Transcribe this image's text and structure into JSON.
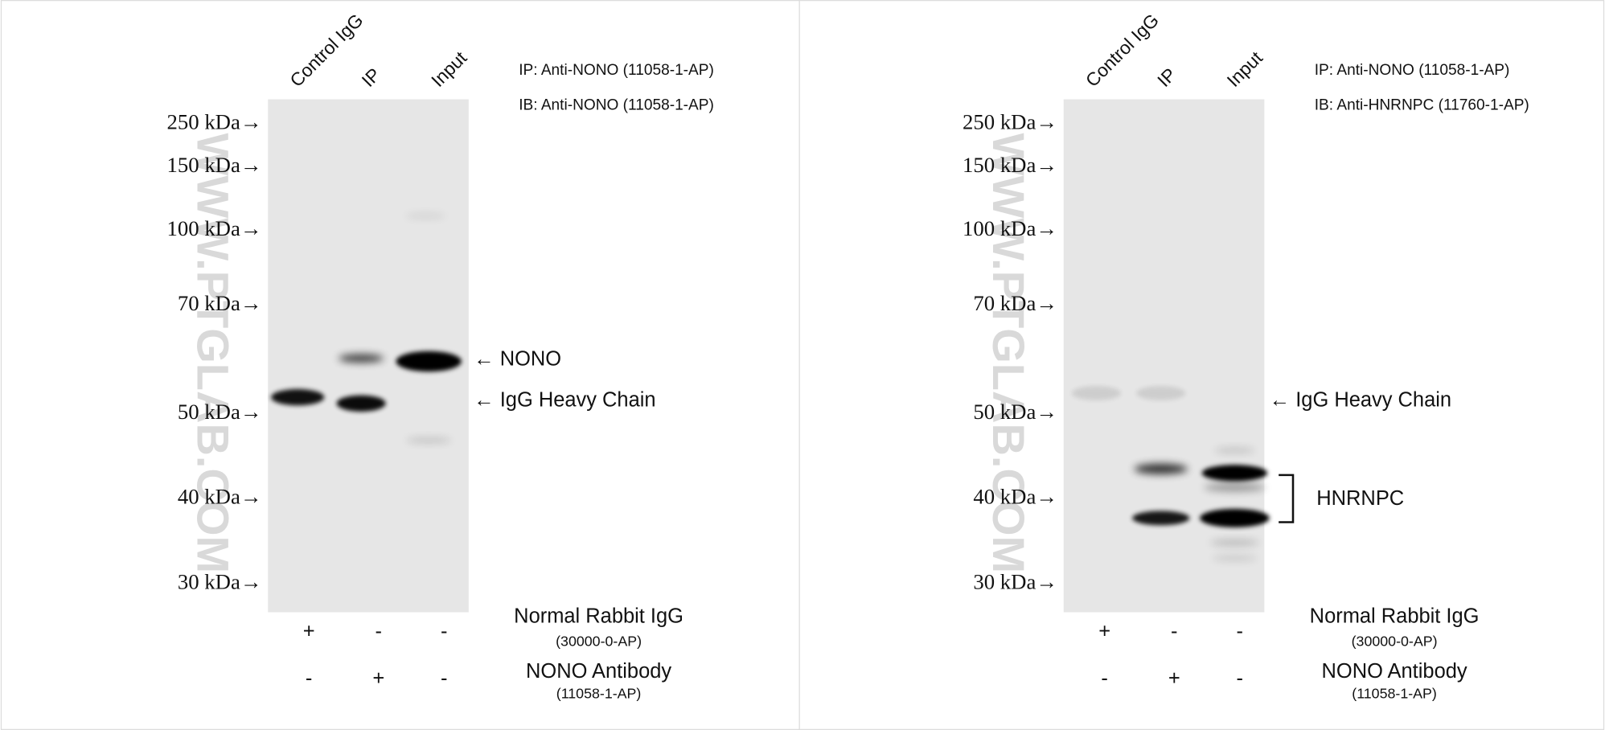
{
  "panels": [
    {
      "lanes": [
        "Control IgG",
        "IP",
        "Input"
      ],
      "ip_label": "IP: Anti-NONO (11058-1-AP)",
      "ib_label": "IB: Anti-NONO (11058-1-AP)",
      "markers": [
        "250 kDa→",
        "150 kDa→",
        "100 kDa→",
        "70 kDa→",
        "50 kDa→",
        "40 kDa→",
        "30 kDa→"
      ],
      "band_labels": [
        "← NONO",
        "← IgG Heavy Chain"
      ],
      "watermark": "WWW.PTGLAB.COM",
      "treatments": [
        {
          "name": "Normal Rabbit IgG",
          "catalog": "(30000-0-AP)",
          "signs": [
            "+",
            "-",
            "-"
          ]
        },
        {
          "name": "NONO Antibody",
          "catalog": "(11058-1-AP)",
          "signs": [
            "-",
            "+",
            "-"
          ]
        }
      ]
    },
    {
      "lanes": [
        "Control IgG",
        "IP",
        "Input"
      ],
      "ip_label": "IP: Anti-NONO (11058-1-AP)",
      "ib_label": "IB: Anti-HNRNPC (11760-1-AP)",
      "markers": [
        "250 kDa→",
        "150 kDa→",
        "100 kDa→",
        "70 kDa→",
        "50 kDa→",
        "40 kDa→",
        "30 kDa→"
      ],
      "band_labels": [
        "← IgG Heavy Chain",
        "HNRNPC"
      ],
      "watermark": "WWW.PTGLAB.COM",
      "treatments": [
        {
          "name": "Normal Rabbit IgG",
          "catalog": "(30000-0-AP)",
          "signs": [
            "+",
            "-",
            "-"
          ]
        },
        {
          "name": "NONO Antibody",
          "catalog": "(11058-1-AP)",
          "signs": [
            "-",
            "+",
            "-"
          ]
        }
      ]
    }
  ]
}
